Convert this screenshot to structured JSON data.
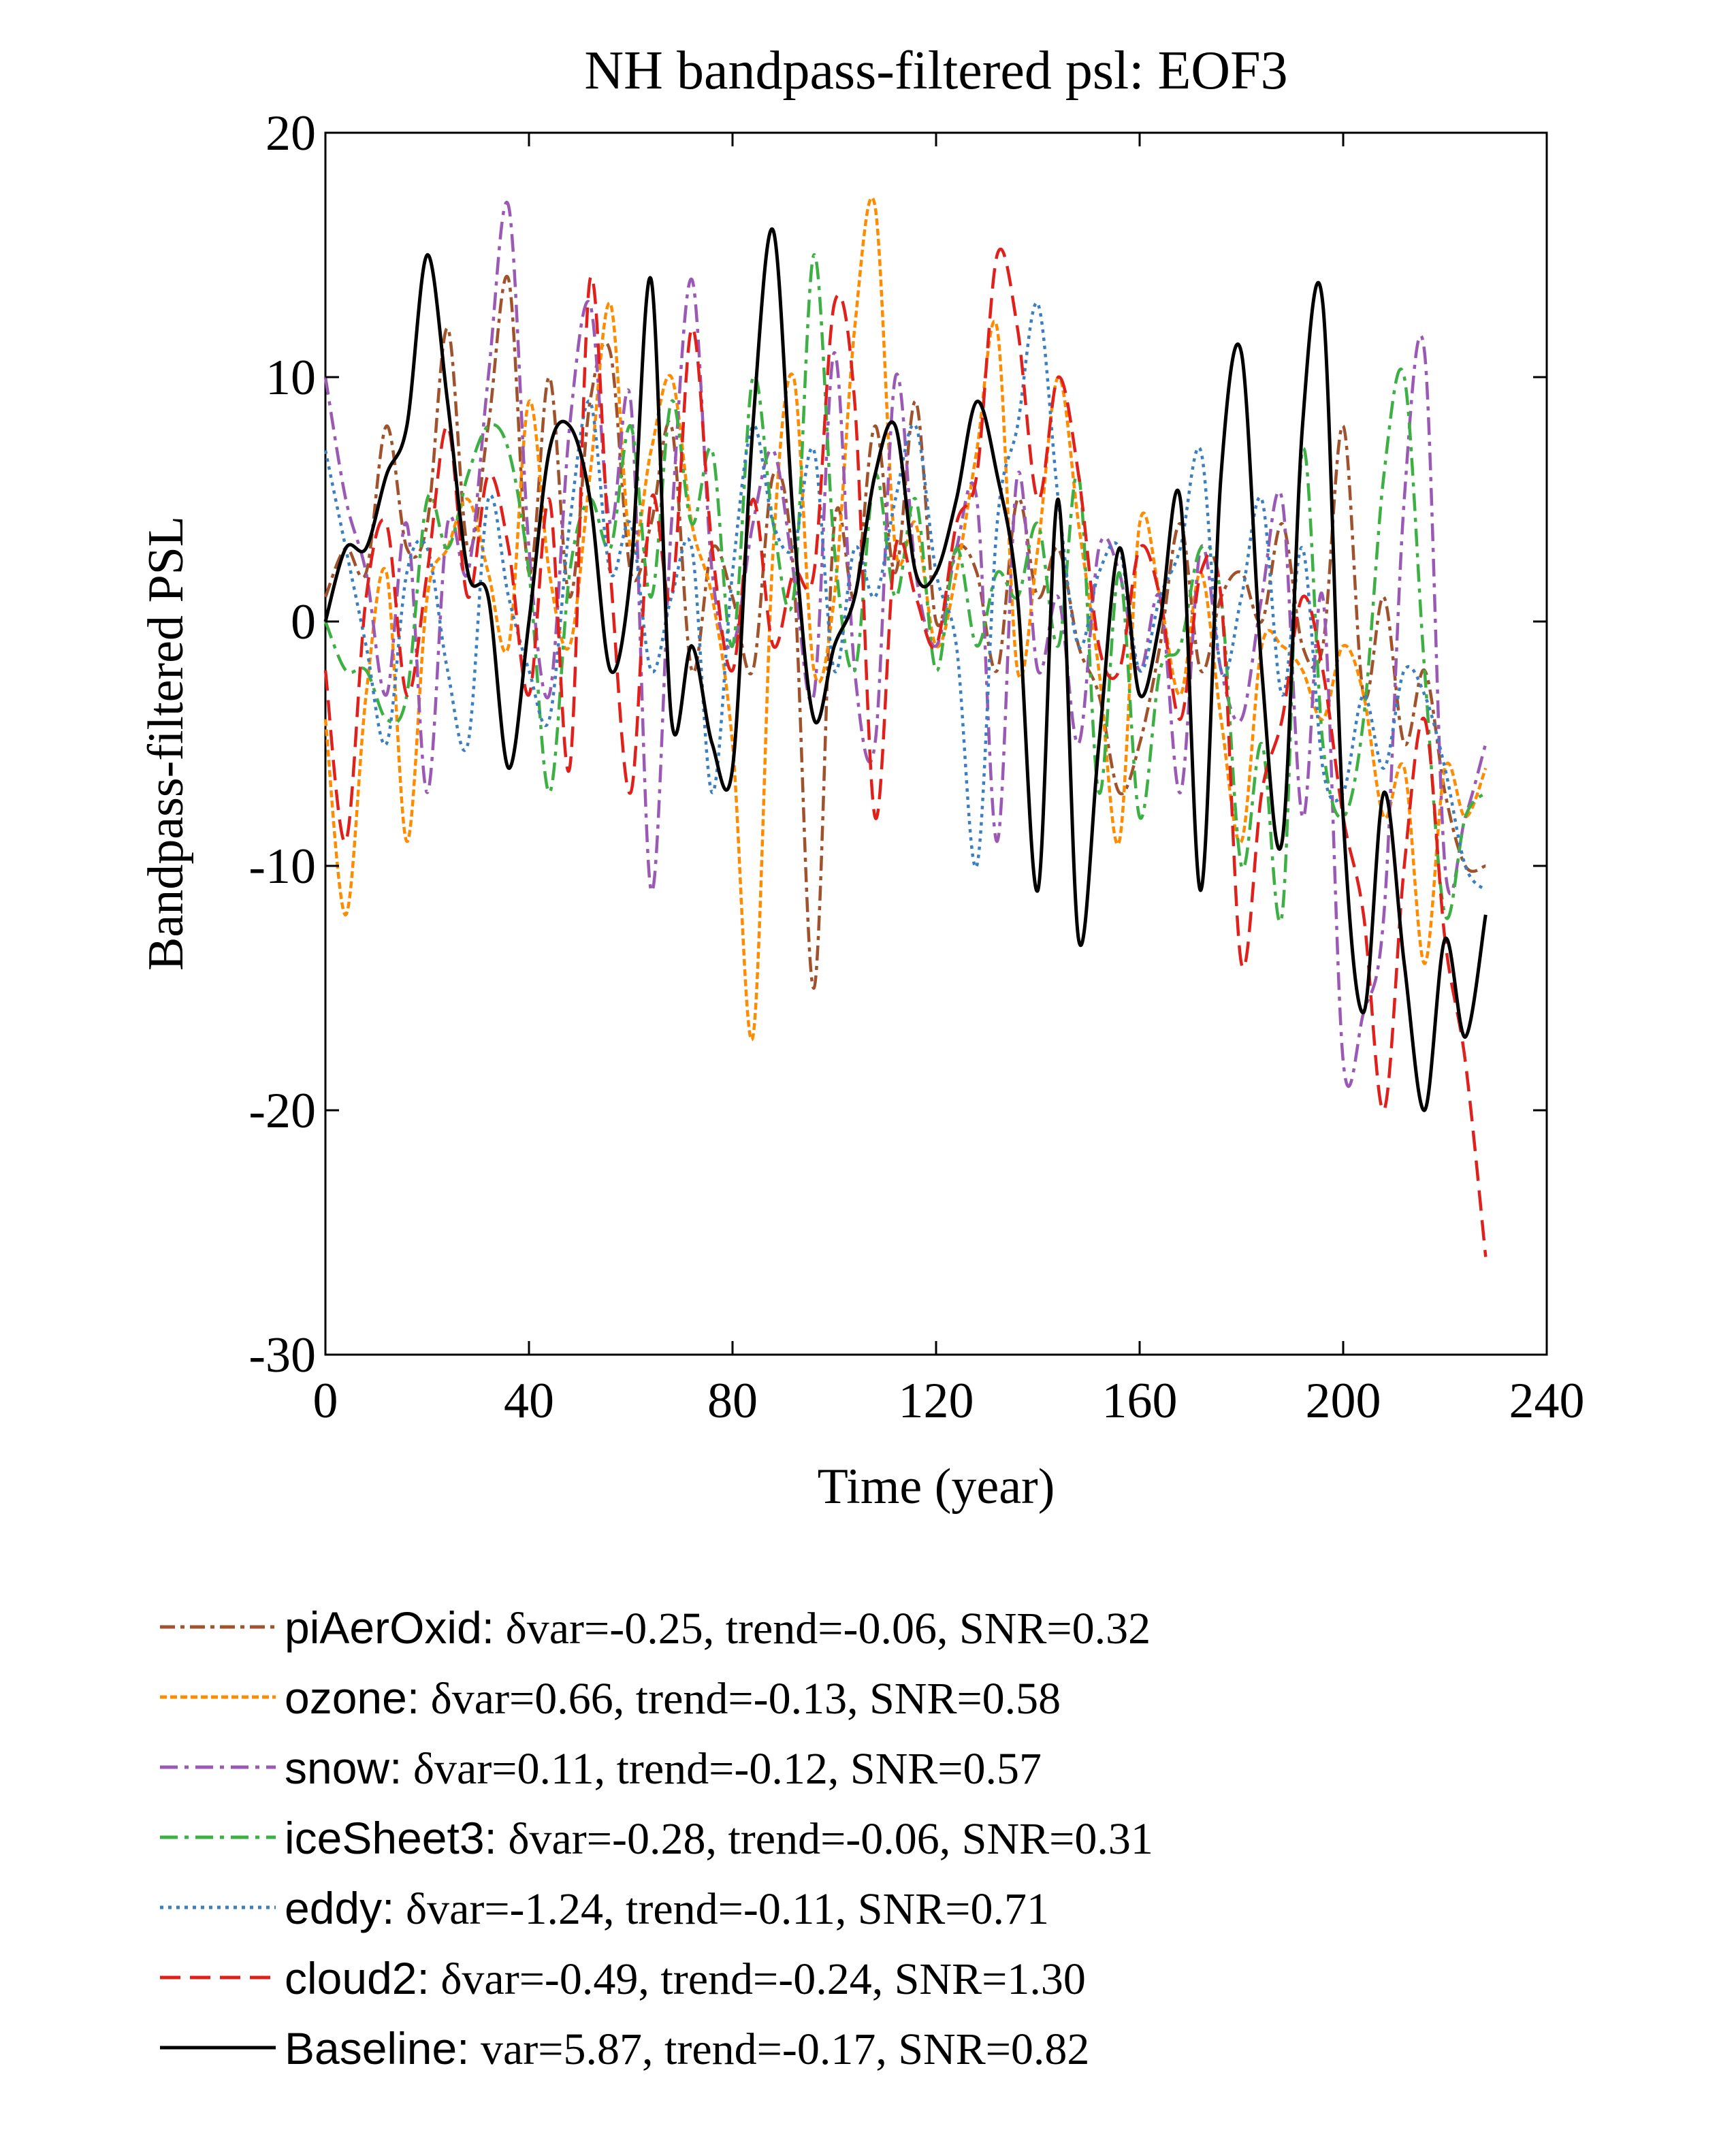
{
  "chart_data": {
    "type": "line",
    "title": "NH bandpass-filtered psl: EOF3",
    "xlabel": "Time (year)",
    "ylabel": "Bandpass-filtered PSL",
    "xlim": [
      0,
      240
    ],
    "ylim": [
      -30,
      20
    ],
    "xticks": [
      0,
      40,
      80,
      120,
      160,
      200,
      240
    ],
    "yticks": [
      20,
      10,
      0,
      -10,
      -20,
      -30
    ],
    "grid": false,
    "legend_position": "bottom",
    "series": [
      {
        "name": "piAerOxid",
        "legend_name": "piAerOxid:",
        "legend_stats": "δvar=-0.25, trend=-0.06, SNR=0.32",
        "color": "#a0522d",
        "dash": "dashed",
        "x": [
          0,
          4,
          8,
          12,
          16,
          20,
          24,
          28,
          32,
          36,
          40,
          44,
          48,
          52,
          56,
          60,
          64,
          68,
          72,
          76,
          80,
          84,
          88,
          92,
          96,
          100,
          104,
          108,
          112,
          116,
          120,
          124,
          128,
          132,
          136,
          140,
          144,
          148,
          152,
          156,
          160,
          164,
          168,
          172,
          176,
          180,
          184,
          188,
          192,
          196,
          200,
          204,
          208,
          212,
          216,
          220,
          224,
          228
        ],
        "values": [
          1,
          3,
          2,
          8,
          3,
          4,
          12,
          3,
          8,
          14,
          2,
          10,
          1,
          9,
          11,
          2,
          4,
          8,
          -2,
          3,
          1,
          -2,
          6,
          2,
          -15,
          4,
          1,
          8,
          2,
          9,
          0,
          3,
          2,
          -2,
          5,
          1,
          3,
          -1,
          -3,
          -7,
          -5,
          -1,
          4,
          -2,
          1,
          2,
          0,
          4,
          -1,
          -1,
          8,
          -3,
          1,
          -5,
          -2,
          -7,
          -10,
          -10
        ]
      },
      {
        "name": "ozone",
        "legend_name": "ozone:",
        "legend_stats": "δvar=0.66, trend=-0.13, SNR=0.58",
        "color": "#ff8c00",
        "dash": "dashed-short",
        "x": [
          0,
          4,
          8,
          12,
          16,
          20,
          24,
          28,
          32,
          36,
          40,
          44,
          48,
          52,
          56,
          60,
          64,
          68,
          72,
          76,
          80,
          84,
          88,
          92,
          96,
          100,
          104,
          108,
          112,
          116,
          120,
          124,
          128,
          132,
          136,
          140,
          144,
          148,
          152,
          156,
          160,
          164,
          168,
          172,
          176,
          180,
          184,
          188,
          192,
          196,
          200,
          204,
          208,
          212,
          216,
          220,
          224,
          228
        ],
        "values": [
          -4,
          -12,
          -3,
          2,
          -9,
          1,
          3,
          5,
          2,
          -1,
          9,
          2,
          -1,
          6,
          13,
          3,
          7,
          10,
          4,
          1,
          -5,
          -17,
          3,
          10,
          -2,
          1,
          12,
          17,
          3,
          4,
          -1,
          2,
          7,
          12,
          -2,
          3,
          10,
          4,
          -2,
          -9,
          4,
          1,
          -3,
          2,
          -4,
          -9,
          -1,
          -1,
          -2,
          -4,
          -1,
          -3,
          -8,
          -6,
          -14,
          -6,
          -8,
          -6
        ]
      },
      {
        "name": "snow",
        "legend_name": "snow:",
        "legend_stats": "δvar=0.11, trend=-0.12, SNR=0.57",
        "color": "#9b59b6",
        "dash": "dashdot",
        "x": [
          0,
          4,
          8,
          12,
          16,
          20,
          24,
          28,
          32,
          36,
          40,
          44,
          48,
          52,
          56,
          60,
          64,
          68,
          72,
          76,
          80,
          84,
          88,
          92,
          96,
          100,
          104,
          108,
          112,
          116,
          120,
          124,
          128,
          132,
          136,
          140,
          144,
          148,
          152,
          156,
          160,
          164,
          168,
          172,
          176,
          180,
          184,
          188,
          192,
          196,
          200,
          204,
          208,
          212,
          216,
          220,
          224,
          228
        ],
        "values": [
          10,
          5,
          2,
          -3,
          4,
          -7,
          4,
          2,
          10,
          17,
          3,
          -3,
          8,
          13,
          4,
          9,
          -11,
          4,
          14,
          2,
          -1,
          4,
          7,
          2,
          -3,
          11,
          -2,
          -5,
          10,
          2,
          -1,
          3,
          5,
          -9,
          6,
          -2,
          1,
          -5,
          3,
          2,
          -2,
          1,
          -7,
          3,
          -2,
          -4,
          1,
          5,
          -8,
          1,
          -18,
          -16,
          -12,
          5,
          11,
          -10,
          -8,
          -5
        ]
      },
      {
        "name": "iceSheet3",
        "legend_name": "iceSheet3:",
        "legend_stats": "δvar=-0.28, trend=-0.06, SNR=0.31",
        "color": "#3cb043",
        "dash": "dashdot",
        "x": [
          0,
          4,
          8,
          12,
          16,
          20,
          24,
          28,
          32,
          36,
          40,
          44,
          48,
          52,
          56,
          60,
          64,
          68,
          72,
          76,
          80,
          84,
          88,
          92,
          96,
          100,
          104,
          108,
          112,
          116,
          120,
          124,
          128,
          132,
          136,
          140,
          144,
          148,
          152,
          156,
          160,
          164,
          168,
          172,
          176,
          180,
          184,
          188,
          192,
          196,
          200,
          204,
          208,
          212,
          216,
          220,
          224,
          228
        ],
        "values": [
          0,
          -2,
          -2,
          -4,
          -3,
          5,
          3,
          6,
          8,
          7,
          2,
          -7,
          2,
          5,
          3,
          8,
          1,
          9,
          4,
          7,
          -1,
          10,
          4,
          1,
          15,
          3,
          -2,
          6,
          1,
          5,
          -2,
          3,
          -1,
          2,
          1,
          4,
          -1,
          6,
          -7,
          2,
          -8,
          -2,
          -1,
          3,
          1,
          -10,
          -5,
          -12,
          7,
          -5,
          -8,
          -4,
          6,
          10,
          -2,
          -12,
          -8,
          -7
        ]
      },
      {
        "name": "eddy",
        "legend_name": "eddy:",
        "legend_stats": "δvar=-1.24, trend=-0.11, SNR=0.71",
        "color": "#3a7fc1",
        "dash": "dotted",
        "x": [
          0,
          4,
          8,
          12,
          16,
          20,
          24,
          28,
          32,
          36,
          40,
          44,
          48,
          52,
          56,
          60,
          64,
          68,
          72,
          76,
          80,
          84,
          88,
          92,
          96,
          100,
          104,
          108,
          112,
          116,
          120,
          124,
          128,
          132,
          136,
          140,
          144,
          148,
          152,
          156,
          160,
          164,
          168,
          172,
          176,
          180,
          184,
          188,
          192,
          196,
          200,
          204,
          208,
          212,
          216,
          220,
          224,
          228
        ],
        "values": [
          7,
          3,
          -1,
          -5,
          2,
          3,
          -2,
          -5,
          5,
          1,
          -2,
          -4,
          4,
          9,
          2,
          4,
          -2,
          1,
          3,
          -7,
          2,
          8,
          4,
          3,
          7,
          -2,
          3,
          1,
          5,
          8,
          2,
          -1,
          -10,
          4,
          8,
          13,
          5,
          -1,
          2,
          3,
          -2,
          1,
          3,
          7,
          -2,
          1,
          5,
          -3,
          3,
          -6,
          -7,
          -3,
          -6,
          -2,
          -3,
          -6,
          -10,
          -11
        ]
      },
      {
        "name": "cloud2",
        "legend_name": "cloud2:",
        "legend_stats": "δvar=-0.49, trend=-0.24, SNR=1.30",
        "color": "#e0201b",
        "dash": "dashed-long",
        "x": [
          0,
          4,
          8,
          12,
          16,
          20,
          24,
          28,
          32,
          36,
          40,
          44,
          48,
          52,
          56,
          60,
          64,
          68,
          72,
          76,
          80,
          84,
          88,
          92,
          96,
          100,
          104,
          108,
          112,
          116,
          120,
          124,
          128,
          132,
          136,
          140,
          144,
          148,
          152,
          156,
          160,
          164,
          168,
          172,
          176,
          180,
          184,
          188,
          192,
          196,
          200,
          204,
          208,
          212,
          216,
          220,
          224,
          228
        ],
        "values": [
          -2,
          -9,
          1,
          4,
          -3,
          2,
          8,
          1,
          6,
          3,
          -3,
          5,
          -6,
          14,
          2,
          -7,
          5,
          1,
          12,
          3,
          -2,
          5,
          -1,
          2,
          2,
          13,
          9,
          -8,
          3,
          1,
          -1,
          4,
          6,
          15,
          12,
          5,
          10,
          6,
          -1,
          -2,
          3,
          1,
          -4,
          2,
          1,
          -14,
          -7,
          -4,
          1,
          -2,
          -8,
          -12,
          -20,
          -10,
          -4,
          -13,
          -18,
          -26
        ]
      },
      {
        "name": "Baseline",
        "legend_name": "Baseline:",
        "legend_stats": "var=5.87, trend=-0.17, SNR=0.82",
        "color": "#000000",
        "dash": "solid",
        "x": [
          0,
          4,
          8,
          12,
          16,
          20,
          24,
          28,
          32,
          36,
          40,
          44,
          48,
          52,
          56,
          60,
          64,
          68,
          72,
          76,
          80,
          84,
          88,
          92,
          96,
          100,
          104,
          108,
          112,
          116,
          120,
          124,
          128,
          132,
          136,
          140,
          144,
          148,
          152,
          156,
          160,
          164,
          168,
          172,
          176,
          180,
          184,
          188,
          192,
          196,
          200,
          204,
          208,
          212,
          216,
          220,
          224,
          228
        ],
        "values": [
          0,
          3,
          3,
          6,
          8,
          15,
          9,
          2,
          1,
          -6,
          0,
          7,
          8,
          5,
          -2,
          2,
          14,
          -4,
          -1,
          -5,
          -6,
          8,
          16,
          4,
          -4,
          -1,
          1,
          6,
          8,
          2,
          2,
          5,
          9,
          6,
          1,
          -11,
          5,
          -13,
          -5,
          3,
          -3,
          0,
          5,
          -11,
          6,
          11,
          -2,
          -9,
          8,
          13,
          -8,
          -16,
          -7,
          -14,
          -20,
          -13,
          -17,
          -12
        ]
      }
    ]
  }
}
